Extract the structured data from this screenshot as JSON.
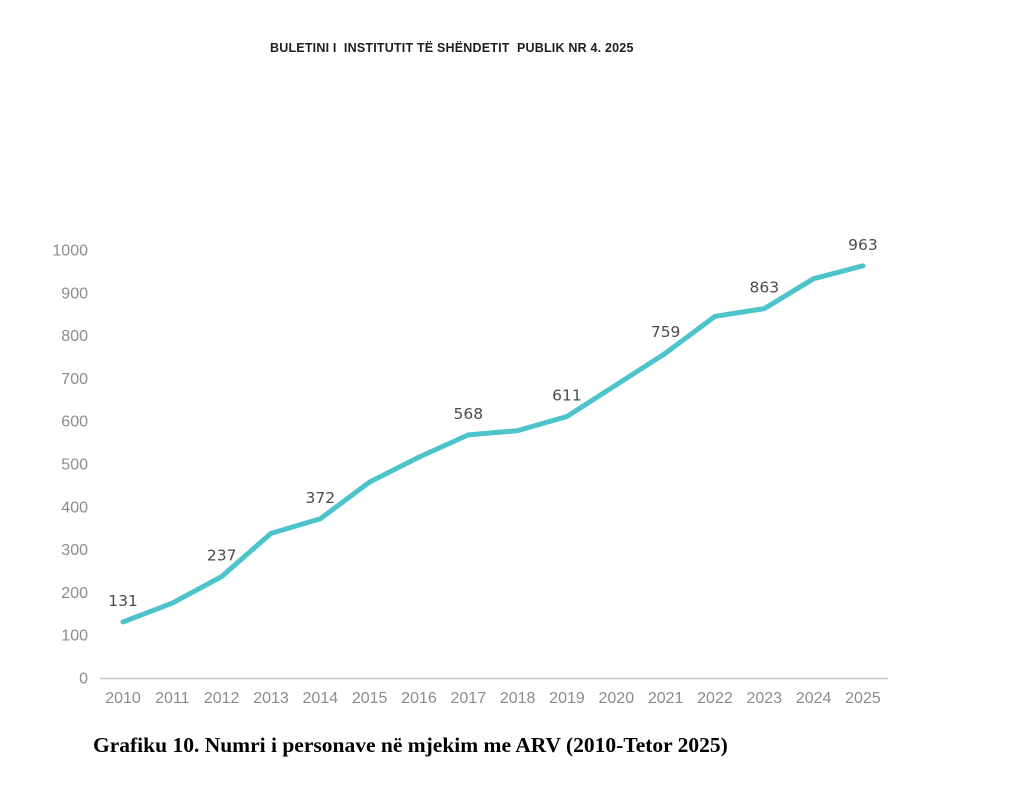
{
  "page": {
    "header": "BULETINI I  INSTITUTIT TË SHËNDETIT  PUBLIK NR 4. 2025",
    "caption": "Grafiku 10. Numri i personave në mjekim me ARV (2010-Tetor 2025)"
  },
  "colors": {
    "line": "#4cc4cb",
    "axis_line": "#c6c6c6",
    "axis_labels": "#8c8c8c",
    "data_labels": "#4f4b49",
    "background": "#ffffff"
  },
  "chart_data": {
    "type": "line",
    "title": "",
    "xlabel": "",
    "ylabel": "",
    "x": [
      2010,
      2011,
      2012,
      2013,
      2014,
      2015,
      2016,
      2017,
      2018,
      2019,
      2020,
      2021,
      2022,
      2023,
      2024,
      2025
    ],
    "values": [
      131,
      175,
      237,
      338,
      372,
      458,
      516,
      568,
      578,
      611,
      685,
      759,
      845,
      863,
      933,
      963
    ],
    "data_labels": [
      131,
      null,
      237,
      null,
      372,
      null,
      null,
      568,
      null,
      611,
      null,
      759,
      null,
      863,
      null,
      963
    ],
    "ylim": [
      0,
      1000
    ],
    "ytick_step": 100,
    "grid": false,
    "legend": "none",
    "series_name": "Numri i personave në mjekim me ARV"
  }
}
